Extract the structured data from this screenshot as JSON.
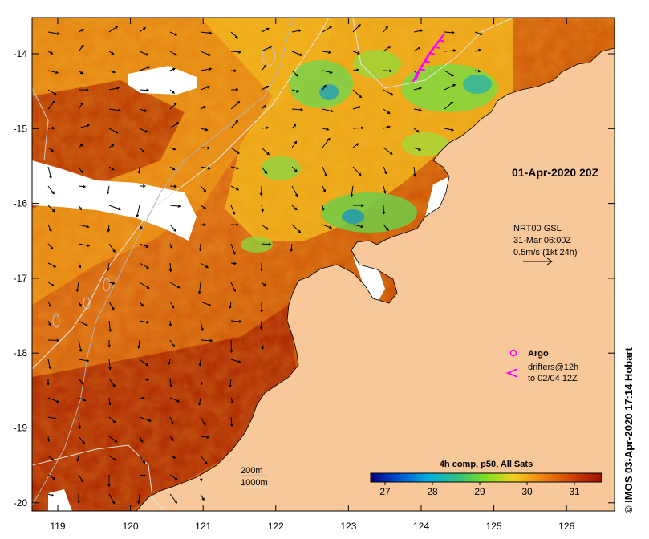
{
  "colors": {
    "land": "#f8c89a",
    "ocean_warm": "#c84000",
    "ocean_hot": "#a81c00",
    "ocean_mid": "#e88a10",
    "ocean_cool": "#7ad24a",
    "ocean_cold": "#38a8a0",
    "argo": "#ff00ff",
    "drifter": "#ff00ff"
  },
  "map": {
    "longitude_ticks": [
      "119",
      "120",
      "121",
      "122",
      "123",
      "124",
      "125",
      "126"
    ],
    "latitude_ticks": [
      "-14",
      "-15",
      "-16",
      "-17",
      "-18",
      "-19",
      "-20"
    ],
    "date_label": "01-Apr-2020 20Z"
  },
  "current_legend": {
    "line1": "NRT00 GSL",
    "line2": "31-Mar 06:00Z",
    "line3": "0.5m/s (1kt 24h)"
  },
  "symbols_legend": {
    "argo_label": "Argo",
    "drifters_line1": "drifters@12h",
    "drifters_line2": "to 02/04 12Z"
  },
  "depth_legend": {
    "contour1": "200m",
    "contour2": "1000m"
  },
  "colorbar": {
    "title": "4h comp, p50, All Sats",
    "ticks": [
      "27",
      "28",
      "29",
      "30",
      "31"
    ],
    "stops": [
      "#000080",
      "#0050d0",
      "#00b0e0",
      "#30c080",
      "#80e020",
      "#f0d020",
      "#f08010",
      "#d04000",
      "#9a1000"
    ]
  },
  "credit": "© IMOS 03-Apr-2020 17:14 Hobart"
}
